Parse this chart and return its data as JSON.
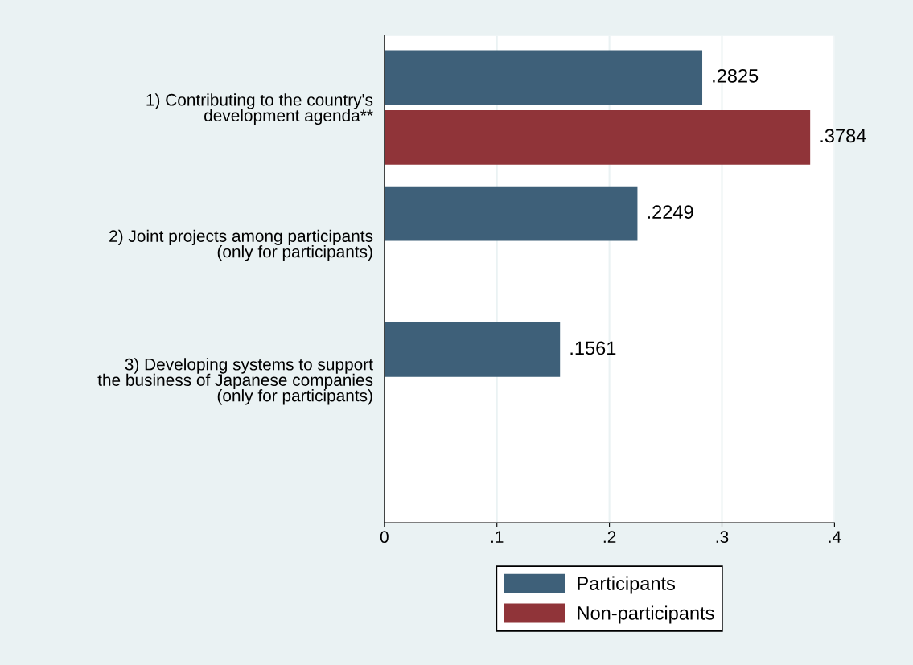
{
  "chart_data": {
    "type": "bar",
    "orientation": "horizontal",
    "categories": [
      "1) Contributing to the country's\ndevelopment agenda**",
      "2) Joint projects among participants\n(only for participants)",
      "3) Developing systems to support\nthe business of Japanese companies\n(only for participants)"
    ],
    "series": [
      {
        "name": "Participants",
        "color": "#3e6079",
        "values": [
          0.2825,
          0.2249,
          0.1561
        ],
        "value_labels": [
          ".2825",
          ".2249",
          ".1561"
        ]
      },
      {
        "name": "Non-participants",
        "color": "#903439",
        "values": [
          0.3784,
          null,
          null
        ],
        "value_labels": [
          ".3784",
          null,
          null
        ]
      }
    ],
    "xlim": [
      0,
      0.4
    ],
    "xticks": [
      0,
      {
        "value": 0.1,
        "label": ".1"
      },
      {
        "value": 0.2,
        "label": ".2"
      },
      {
        "value": 0.3,
        "label": ".3"
      },
      {
        "value": 0.4,
        "label": ".4"
      }
    ],
    "grid": "x",
    "legend": "bottom"
  }
}
